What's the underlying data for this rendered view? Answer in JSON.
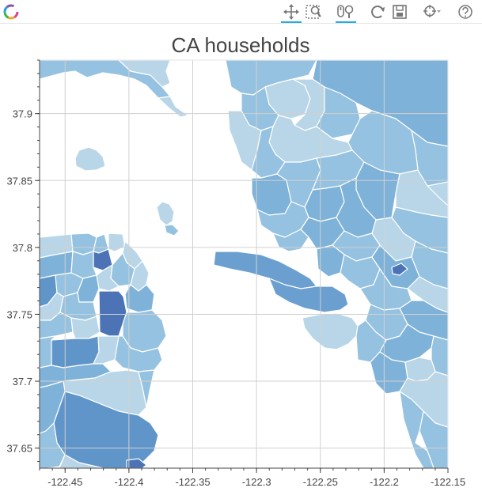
{
  "toolbar": {
    "tools": [
      {
        "name": "bokeh-logo-icon",
        "active": false
      },
      {
        "name": "pan-icon",
        "active": true
      },
      {
        "name": "box-zoom-icon",
        "active": false
      },
      {
        "name": "wheel-zoom-icon",
        "active": true
      },
      {
        "name": "reset-icon",
        "active": false
      },
      {
        "name": "save-icon",
        "active": false
      },
      {
        "name": "hover-icon",
        "active": false
      },
      {
        "name": "help-icon",
        "active": false
      }
    ]
  },
  "chart_data": {
    "type": "map",
    "title": "CA households",
    "xlim": [
      -122.47,
      -122.15
    ],
    "ylim": [
      37.635,
      37.94
    ],
    "x_ticks": [
      -122.45,
      -122.4,
      -122.35,
      -122.3,
      -122.25,
      -122.2,
      -122.15
    ],
    "x_tick_labels": [
      "-122.45",
      "-122.4",
      "-122.35",
      "-122.3",
      "-122.25",
      "-122.2",
      "-122.15"
    ],
    "y_ticks": [
      37.65,
      37.7,
      37.75,
      37.8,
      37.85,
      37.9
    ],
    "y_tick_labels": [
      "37.65",
      "37.7",
      "37.75",
      "37.8",
      "37.85",
      "37.9"
    ],
    "grid": true,
    "colors": {
      "light": "#b8d6e8",
      "medium": "#95c2e0",
      "mid": "#7fb2d8",
      "dark": "#5f95c9",
      "darkest": "#4b73b5",
      "water": "#ffffff",
      "border": "#ffffff"
    }
  }
}
